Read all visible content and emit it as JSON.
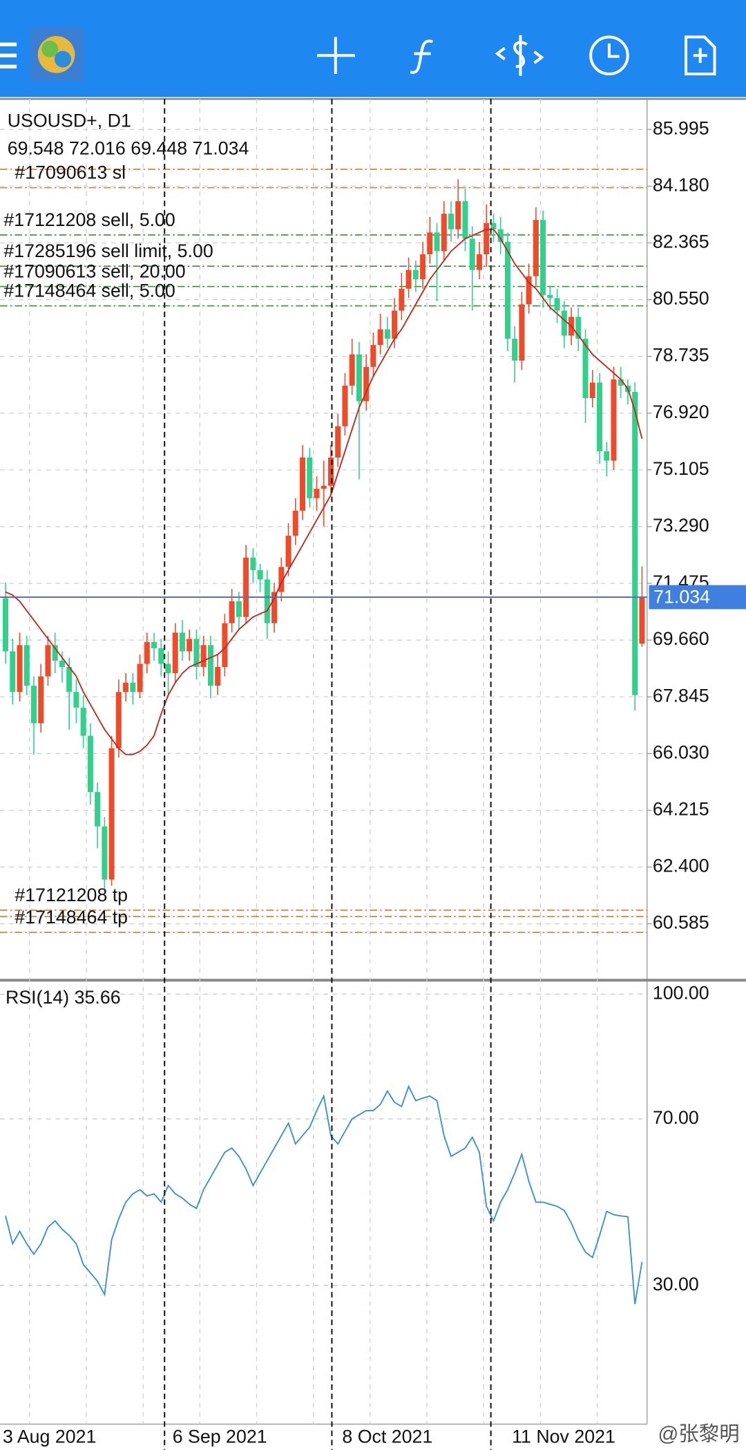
{
  "app": {
    "symbol": "USOUSD+, D1",
    "watermark": "@张黎明"
  },
  "chart_data": {
    "type": "candlestick",
    "categories": [
      "3 Aug 2021",
      null,
      null,
      null,
      null,
      null,
      null,
      null,
      null,
      null,
      null,
      null,
      null,
      null,
      null,
      null,
      null,
      null,
      null,
      null,
      null,
      null,
      null,
      null,
      "6 Sep 2021",
      null,
      null,
      null,
      null,
      null,
      null,
      null,
      null,
      null,
      null,
      null,
      null,
      null,
      null,
      null,
      null,
      null,
      null,
      null,
      null,
      null,
      null,
      null,
      "8 Oct 2021",
      null,
      null,
      null,
      null,
      null,
      null,
      null,
      null,
      null,
      null,
      null,
      null,
      null,
      null,
      null,
      null,
      null,
      null,
      null,
      null,
      null,
      null,
      null,
      "11 Nov 2021",
      null,
      null,
      null,
      null,
      null,
      null,
      null,
      null,
      null,
      null,
      null,
      null,
      null,
      null,
      null,
      null,
      null,
      null
    ],
    "open": [
      71.0,
      69.3,
      68.0,
      69.5,
      68.2,
      67.0,
      68.5,
      69.5,
      69.0,
      68.8,
      68.0,
      67.5,
      66.6,
      64.8,
      63.7,
      62.0,
      66.2,
      68.0,
      68.3,
      68.0,
      68.9,
      69.6,
      69.4,
      68.9,
      68.6,
      69.9,
      69.3,
      69.7,
      68.8,
      69.5,
      68.2,
      68.8,
      70.2,
      70.9,
      70.4,
      72.3,
      71.9,
      71.6,
      70.2,
      71.2,
      72.0,
      73.0,
      73.8,
      75.5,
      74.2,
      74.5,
      74.6,
      75.5,
      76.5,
      77.8,
      78.8,
      77.3,
      78.4,
      79.1,
      79.6,
      79.3,
      80.2,
      80.9,
      81.5,
      81.2,
      82.0,
      82.7,
      82.1,
      83.3,
      82.8,
      83.7,
      82.5,
      81.5,
      82.0,
      83.0,
      82.8,
      82.4,
      79.3,
      78.6,
      80.4,
      81.3,
      83.1,
      80.7,
      80.6,
      80.2,
      79.4,
      80.0,
      79.3,
      77.4,
      77.9,
      75.7,
      75.4,
      78.0,
      77.8,
      77.6,
      69.548
    ],
    "high": [
      71.5,
      69.7,
      69.9,
      69.8,
      68.5,
      68.9,
      69.8,
      69.9,
      69.3,
      69.1,
      68.4,
      67.9,
      67.0,
      65.1,
      64.0,
      66.6,
      68.4,
      68.6,
      68.6,
      69.2,
      69.9,
      69.9,
      69.7,
      69.3,
      70.2,
      70.3,
      70.0,
      70.0,
      69.8,
      69.8,
      69.2,
      70.5,
      71.3,
      71.2,
      72.7,
      72.6,
      72.1,
      71.9,
      71.5,
      72.3,
      73.4,
      74.2,
      75.9,
      75.8,
      74.9,
      75.4,
      75.9,
      76.9,
      78.2,
      79.3,
      79.2,
      78.8,
      79.5,
      80.1,
      80.0,
      80.6,
      81.4,
      81.9,
      81.8,
      82.4,
      83.2,
      83.0,
      83.7,
      83.7,
      84.4,
      84.1,
      82.9,
      82.4,
      83.6,
      83.3,
      83.2,
      82.7,
      79.7,
      80.8,
      81.7,
      83.5,
      83.4,
      81.0,
      80.9,
      80.5,
      80.3,
      80.3,
      79.6,
      78.3,
      78.2,
      76.0,
      78.4,
      78.4,
      78.0,
      77.9,
      72.016
    ],
    "low": [
      68.9,
      67.6,
      67.7,
      67.9,
      66.0,
      66.7,
      68.2,
      68.6,
      68.3,
      66.8,
      67.0,
      66.2,
      64.4,
      63.0,
      61.7,
      61.8,
      65.9,
      67.7,
      67.6,
      67.8,
      68.6,
      69.0,
      68.5,
      67.9,
      68.3,
      69.0,
      69.0,
      68.4,
      68.5,
      67.8,
      67.9,
      68.5,
      69.9,
      70.0,
      70.2,
      71.5,
      71.2,
      69.7,
      69.9,
      70.9,
      71.7,
      72.7,
      73.5,
      73.9,
      73.8,
      73.3,
      74.3,
      75.2,
      76.2,
      77.5,
      74.8,
      77.0,
      78.1,
      78.8,
      79.0,
      79.0,
      79.9,
      80.6,
      80.8,
      80.9,
      81.7,
      80.5,
      81.8,
      82.4,
      82.5,
      82.1,
      80.2,
      81.2,
      81.6,
      82.4,
      82.0,
      78.9,
      77.9,
      78.3,
      80.1,
      81.0,
      80.3,
      80.2,
      79.8,
      79.0,
      79.1,
      78.9,
      76.6,
      77.1,
      75.3,
      74.9,
      75.1,
      77.4,
      77.2,
      67.4,
      69.448
    ],
    "close": [
      69.3,
      68.0,
      69.5,
      68.2,
      67.0,
      68.5,
      69.5,
      69.0,
      68.8,
      68.0,
      67.5,
      66.6,
      64.8,
      63.7,
      62.0,
      66.2,
      68.0,
      68.3,
      68.0,
      68.9,
      69.6,
      69.4,
      68.9,
      68.6,
      69.9,
      69.3,
      69.7,
      68.8,
      69.5,
      68.2,
      68.8,
      70.2,
      70.9,
      70.4,
      72.3,
      71.9,
      71.6,
      70.2,
      71.2,
      72.0,
      73.0,
      73.8,
      75.5,
      74.2,
      74.5,
      74.6,
      75.5,
      76.5,
      77.8,
      78.8,
      77.3,
      78.4,
      79.1,
      79.6,
      79.3,
      80.2,
      80.9,
      81.5,
      81.2,
      82.0,
      82.7,
      82.1,
      83.3,
      82.8,
      83.7,
      82.5,
      81.5,
      82.0,
      83.0,
      82.8,
      82.4,
      79.3,
      78.6,
      80.4,
      81.3,
      83.1,
      80.7,
      80.6,
      80.2,
      79.4,
      80.0,
      79.3,
      77.4,
      77.9,
      75.7,
      75.4,
      78.0,
      77.8,
      77.6,
      67.9,
      71.034
    ],
    "up_color": "#ef4b2b",
    "down_color": "#33cf8d",
    "ma": {
      "color": "#c0281e",
      "values": [
        71.2,
        71.1,
        70.9,
        70.6,
        70.3,
        70.0,
        69.7,
        69.4,
        69.1,
        68.8,
        68.5,
        68.0,
        67.6,
        67.2,
        66.8,
        66.5,
        66.2,
        66.0,
        66.0,
        66.1,
        66.3,
        66.6,
        67.3,
        67.9,
        68.3,
        68.6,
        68.8,
        68.9,
        69.0,
        69.1,
        69.2,
        69.4,
        69.7,
        70.0,
        70.2,
        70.4,
        70.5,
        70.6,
        71.0,
        71.5,
        71.9,
        72.3,
        72.7,
        73.1,
        73.5,
        73.9,
        74.3,
        75.0,
        75.7,
        76.4,
        77.1,
        77.6,
        78.1,
        78.5,
        78.9,
        79.3,
        79.6,
        80.0,
        80.4,
        80.8,
        81.2,
        81.5,
        81.8,
        82.1,
        82.3,
        82.5,
        82.6,
        82.7,
        82.8,
        82.8,
        82.5,
        82.1,
        81.7,
        81.4,
        81.1,
        80.9,
        80.6,
        80.3,
        80.1,
        79.9,
        79.7,
        79.4,
        79.1,
        78.8,
        78.6,
        78.4,
        78.2,
        78.0,
        77.7,
        77.0,
        76.1
      ]
    },
    "ylim": [
      58.78,
      86.97
    ],
    "yticks": [
      85.995,
      {
        "value": 84.18,
        "label": "84.180"
      },
      82.365,
      {
        "value": 80.55,
        "label": "80.550"
      },
      78.735,
      {
        "value": 76.92,
        "label": "76.920"
      },
      75.105,
      {
        "value": 73.29,
        "label": "73.290"
      },
      71.475,
      {
        "value": 69.66,
        "label": "69.660"
      },
      67.845,
      {
        "value": 66.03,
        "label": "66.030"
      },
      64.215,
      {
        "value": 62.4,
        "label": "62.400"
      },
      60.585
    ],
    "grid": true,
    "price_line_color": "#5b6cb8",
    "price_box_color": "#3f7fe0",
    "order_lines": [
      {
        "price": 84.72,
        "color": "#d9782f"
      },
      {
        "price": 84.13,
        "color": "#d9782f",
        "label": "#17090613 sl"
      },
      {
        "price": 82.62,
        "color": "#3c8a3c",
        "label": "#17121208 sell, 5.00"
      },
      {
        "price": 81.62,
        "color": "#3c8a3c",
        "label": "#17285196 sell limit, 5.00"
      },
      {
        "price": 80.97,
        "color": "#3c8a3c",
        "label": "#17090613 sell, 20.00"
      },
      {
        "price": 80.35,
        "color": "#3c8a3c",
        "label": "#17148464 sell, 5.00"
      },
      {
        "price": 61.02,
        "color": "#d9782f",
        "label": "#17121208 tp"
      },
      {
        "price": 60.82,
        "color": "#d9782f"
      },
      {
        "price": 60.31,
        "color": "#d9782f",
        "label": "#17148464 tp"
      }
    ],
    "rsi": {
      "name": "RSI(14)",
      "color": "#3a8fd0",
      "values": [
        46.7,
        40,
        43,
        40,
        37.5,
        40,
        44,
        45.5,
        43.5,
        42,
        40,
        35,
        33,
        31,
        27.8,
        41,
        46,
        50,
        52,
        53,
        51.5,
        52,
        50,
        54,
        52,
        51,
        49.5,
        48.5,
        53,
        56,
        59,
        62,
        63,
        61,
        58,
        54,
        57,
        60,
        63,
        66,
        69,
        64,
        66,
        68,
        72,
        75.5,
        66,
        64,
        67,
        70,
        71,
        72,
        72,
        73.5,
        76.7,
        74,
        73,
        77.8,
        74.4,
        75,
        75.5,
        74.4,
        66,
        61,
        62,
        63,
        65.6,
        62,
        49,
        45.5,
        50,
        53,
        57,
        61.5,
        55,
        50,
        50,
        49.5,
        49,
        48,
        45,
        41,
        38,
        36.7,
        42,
        47.8,
        47,
        46.7,
        46.5,
        25.5,
        35.66
      ],
      "ylim": [
        0,
        100
      ],
      "yticks": [
        {
          "value": 100,
          "label": "100.00"
        },
        {
          "value": 70,
          "label": "70.00"
        },
        {
          "value": 30,
          "label": "30.00"
        }
      ]
    }
  }
}
